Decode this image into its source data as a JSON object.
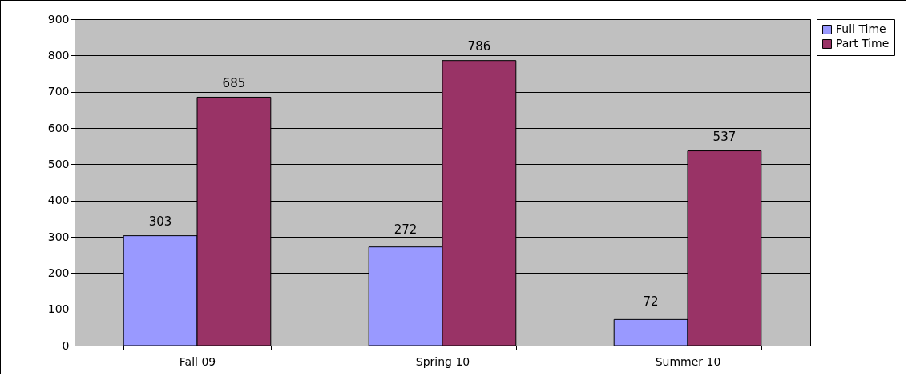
{
  "chart_data": {
    "type": "bar",
    "categories": [
      "Fall 09",
      "Spring 10",
      "Summer 10"
    ],
    "series": [
      {
        "name": "Full Time",
        "color": "#9999ff",
        "values": [
          303,
          272,
          72
        ]
      },
      {
        "name": "Part Time",
        "color": "#993366",
        "values": [
          685,
          786,
          537
        ]
      }
    ],
    "ylim": [
      0,
      900
    ],
    "yticks": [
      0,
      100,
      200,
      300,
      400,
      500,
      600,
      700,
      800,
      900
    ],
    "grid": "y",
    "legend": "right",
    "data_labels": true
  }
}
